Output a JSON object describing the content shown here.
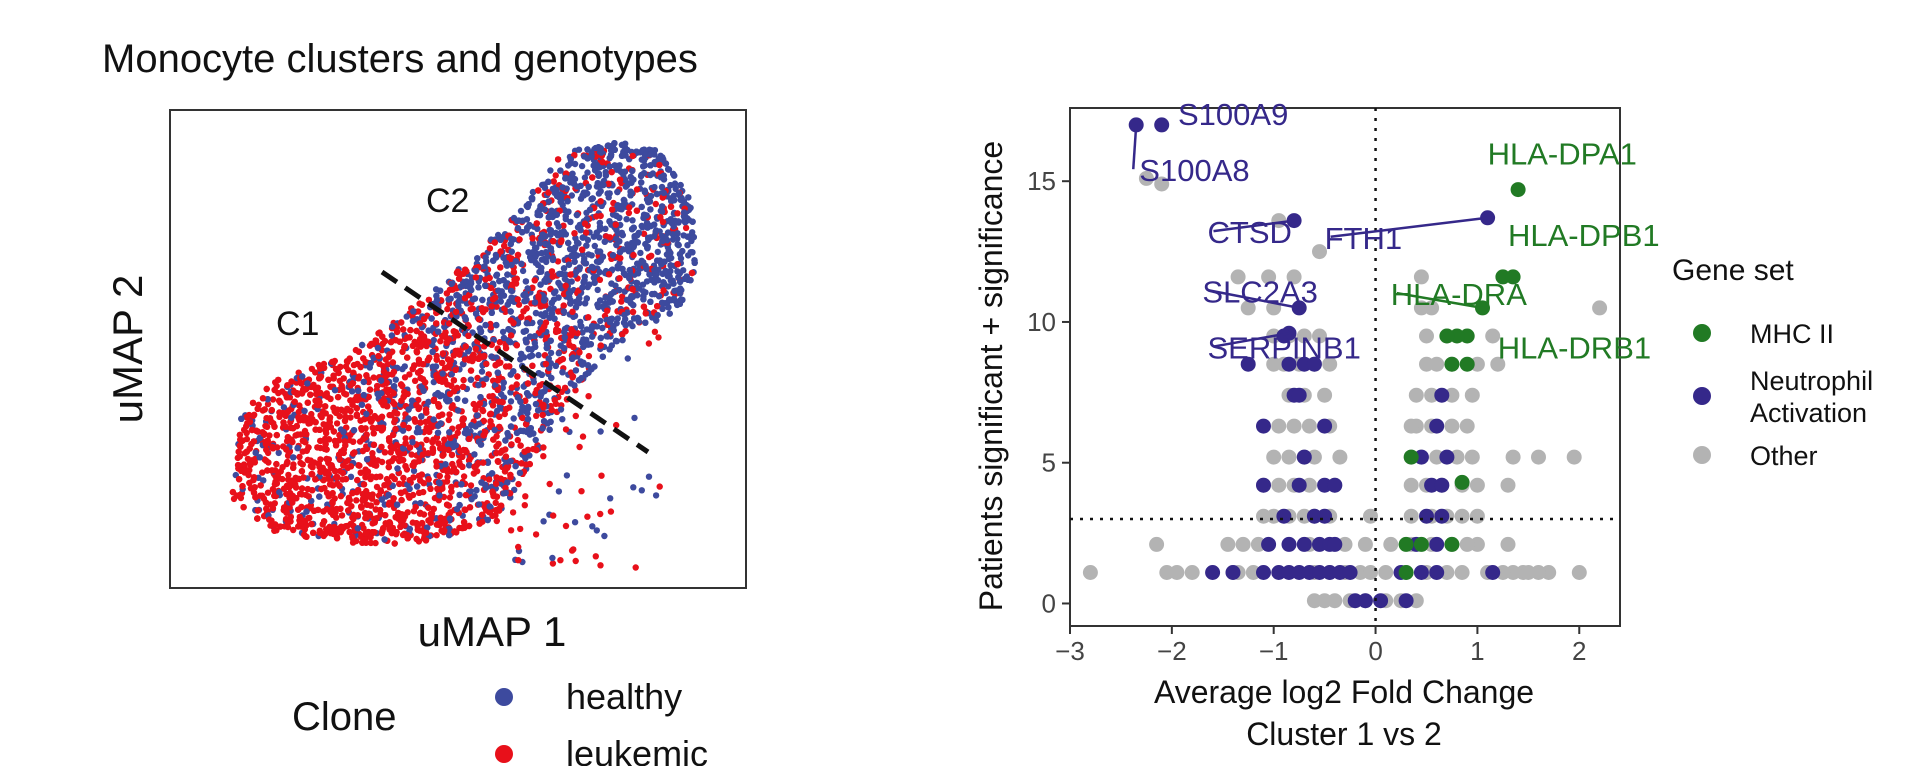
{
  "colors": {
    "healthy": "#3d4a9e",
    "leukemic": "#e8101a",
    "mhc": "#217a24",
    "neutrophil": "#35288a",
    "other": "#b3b3b3",
    "frame": "#333333"
  },
  "chart_data": [
    {
      "type": "scatter",
      "title": "Monocyte clusters and genotypes",
      "xlabel": "uMAP 1",
      "ylabel": "uMAP 2",
      "annotations": [
        "C1",
        "C2"
      ],
      "legend": {
        "title": "Clone",
        "position": "bottom",
        "entries": [
          {
            "key": "healthy",
            "label": "healthy"
          },
          {
            "key": "leukemic",
            "label": "leukemic"
          }
        ]
      },
      "divider": "dashed diagonal line separating C1 and C2"
    },
    {
      "type": "scatter",
      "xlabel": "Average log2 Fold Change",
      "xlabel2": "Cluster 1 vs 2",
      "ylabel": "Patients significant + significance",
      "xlim": [
        -3,
        2.4
      ],
      "ylim": [
        -0.8,
        17.6
      ],
      "xticks": [
        -3,
        -2,
        -1,
        0,
        1,
        2
      ],
      "xtick_labels": [
        "−3",
        "−2",
        "−1",
        "0",
        "1",
        "2"
      ],
      "yticks": [
        0,
        5,
        10,
        15
      ],
      "ytick_labels": [
        "0",
        "5",
        "10",
        "15"
      ],
      "hline": 3,
      "vline": 0,
      "legend": {
        "title": "Gene set",
        "position": "right",
        "entries": [
          {
            "key": "mhc",
            "lines": [
              "MHC II"
            ]
          },
          {
            "key": "neutrophil",
            "lines": [
              "Neutrophil",
              "Activation"
            ]
          },
          {
            "key": "other",
            "lines": [
              "Other"
            ]
          }
        ]
      },
      "labeled_points": [
        {
          "gene": "S100A9",
          "x": -2.1,
          "y": 17.0,
          "set": "neutrophil",
          "label_x": -1.94,
          "label_y": 17.0
        },
        {
          "gene": "S100A8",
          "x": -2.35,
          "y": 17.0,
          "set": "neutrophil",
          "label_x": -2.32,
          "label_y": 15.0
        },
        {
          "gene": "HLA-DPA1",
          "x": 1.4,
          "y": 14.7,
          "set": "mhc",
          "label_x": 1.1,
          "label_y": 15.6
        },
        {
          "gene": "FTH1",
          "x": 1.1,
          "y": 13.7,
          "set": "neutrophil",
          "label_x": -0.5,
          "label_y": 12.6
        },
        {
          "gene": "CTSD",
          "x": -0.8,
          "y": 13.6,
          "set": "neutrophil",
          "label_x": -1.65,
          "label_y": 12.8
        },
        {
          "gene": "HLA-DPB1",
          "x": 1.25,
          "y": 11.6,
          "set": "mhc",
          "label_x": 1.3,
          "label_y": 12.7
        },
        {
          "gene": "SLC2A3",
          "x": -0.75,
          "y": 10.5,
          "set": "neutrophil",
          "label_x": -1.7,
          "label_y": 10.7
        },
        {
          "gene": "HLA-DRA",
          "x": 1.05,
          "y": 10.5,
          "set": "mhc",
          "label_x": 0.15,
          "label_y": 10.6
        },
        {
          "gene": "SERPINB1",
          "x": -0.85,
          "y": 9.6,
          "set": "neutrophil",
          "label_x": -1.65,
          "label_y": 8.7
        },
        {
          "gene": "HLA-DRB1",
          "x": 0.9,
          "y": 9.5,
          "set": "mhc",
          "label_x": 1.2,
          "label_y": 8.7
        }
      ],
      "points": {
        "other": [
          [
            -2.8,
            1.1
          ],
          [
            -2.05,
            1.1
          ],
          [
            -1.95,
            1.1
          ],
          [
            -1.8,
            1.1
          ],
          [
            -1.4,
            1.1
          ],
          [
            -1.2,
            1.1
          ],
          [
            2.0,
            1.1
          ],
          [
            1.7,
            1.1
          ],
          [
            1.6,
            1.1
          ],
          [
            1.45,
            1.1
          ],
          [
            -2.15,
            2.1
          ],
          [
            -1.45,
            2.1
          ],
          [
            -1.3,
            2.1
          ],
          [
            -1.15,
            2.1
          ],
          [
            1.3,
            2.1
          ],
          [
            1.0,
            2.1
          ],
          [
            0.9,
            2.1
          ],
          [
            -1.35,
            1.1
          ],
          [
            1.5,
            1.1
          ],
          [
            1.35,
            1.1
          ],
          [
            -1.1,
            3.1
          ],
          [
            -1.0,
            3.1
          ],
          [
            -0.85,
            3.1
          ],
          [
            -0.7,
            3.1
          ],
          [
            -0.6,
            3.1
          ],
          [
            0.55,
            3.1
          ],
          [
            0.7,
            3.1
          ],
          [
            0.85,
            3.1
          ],
          [
            1.0,
            3.1
          ],
          [
            -0.05,
            3.1
          ],
          [
            -1.1,
            4.2
          ],
          [
            -0.95,
            4.2
          ],
          [
            -0.8,
            4.2
          ],
          [
            -0.65,
            4.2
          ],
          [
            0.5,
            4.2
          ],
          [
            0.65,
            4.2
          ],
          [
            0.85,
            4.2
          ],
          [
            1.0,
            4.2
          ],
          [
            1.3,
            4.2
          ],
          [
            -1.0,
            5.2
          ],
          [
            -0.85,
            5.2
          ],
          [
            -0.7,
            5.2
          ],
          [
            -0.6,
            5.2
          ],
          [
            0.45,
            5.2
          ],
          [
            0.6,
            5.2
          ],
          [
            0.8,
            5.2
          ],
          [
            0.95,
            5.2
          ],
          [
            1.35,
            5.2
          ],
          [
            1.6,
            5.2
          ],
          [
            1.95,
            5.2
          ],
          [
            -0.95,
            6.3
          ],
          [
            -0.8,
            6.3
          ],
          [
            -0.65,
            6.3
          ],
          [
            0.4,
            6.3
          ],
          [
            0.55,
            6.3
          ],
          [
            0.75,
            6.3
          ],
          [
            0.9,
            6.3
          ],
          [
            -0.85,
            7.4
          ],
          [
            -0.7,
            7.4
          ],
          [
            0.4,
            7.4
          ],
          [
            0.55,
            7.4
          ],
          [
            0.75,
            7.4
          ],
          [
            0.95,
            7.4
          ],
          [
            -1.0,
            8.5
          ],
          [
            -0.9,
            8.5
          ],
          [
            -0.75,
            8.5
          ],
          [
            -0.6,
            8.5
          ],
          [
            0.5,
            8.5
          ],
          [
            0.6,
            8.5
          ],
          [
            0.75,
            8.5
          ],
          [
            1.0,
            8.5
          ],
          [
            1.2,
            8.5
          ],
          [
            -1.0,
            9.5
          ],
          [
            -0.85,
            9.5
          ],
          [
            -0.7,
            9.5
          ],
          [
            0.5,
            9.5
          ],
          [
            0.7,
            9.5
          ],
          [
            1.15,
            9.5
          ],
          [
            -1.25,
            10.5
          ],
          [
            -1.0,
            10.5
          ],
          [
            0.45,
            10.5
          ],
          [
            0.55,
            10.5
          ],
          [
            2.2,
            10.5
          ],
          [
            -1.35,
            11.6
          ],
          [
            -1.05,
            11.6
          ],
          [
            0.45,
            11.6
          ],
          [
            -0.8,
            11.6
          ],
          [
            -0.95,
            13.6
          ],
          [
            -0.55,
            12.5
          ],
          [
            -2.1,
            14.9
          ],
          [
            -2.25,
            15.1
          ],
          [
            -0.6,
            0.1
          ],
          [
            -0.5,
            0.1
          ],
          [
            -0.4,
            0.1
          ],
          [
            -0.25,
            0.1
          ],
          [
            0.1,
            0.1
          ],
          [
            0.25,
            0.1
          ],
          [
            0.4,
            0.1
          ],
          [
            -0.1,
            0.1
          ],
          [
            -0.6,
            1.1
          ],
          [
            -0.45,
            1.1
          ],
          [
            -0.3,
            1.1
          ],
          [
            -0.15,
            1.1
          ],
          [
            -0.05,
            1.1
          ],
          [
            0.1,
            1.1
          ],
          [
            0.3,
            1.1
          ],
          [
            0.5,
            1.1
          ],
          [
            0.7,
            1.1
          ],
          [
            0.85,
            1.1
          ],
          [
            1.1,
            1.1
          ],
          [
            1.25,
            1.1
          ],
          [
            -0.65,
            2.1
          ],
          [
            -0.3,
            2.1
          ],
          [
            -0.1,
            2.1
          ],
          [
            0.15,
            2.1
          ],
          [
            0.35,
            2.1
          ],
          [
            0.55,
            2.1
          ],
          [
            0.75,
            2.1
          ],
          [
            -0.45,
            3.1
          ],
          [
            0.35,
            3.1
          ],
          [
            -0.4,
            4.2
          ],
          [
            0.35,
            4.2
          ],
          [
            -0.35,
            5.2
          ],
          [
            0.35,
            5.2
          ],
          [
            -0.45,
            6.3
          ],
          [
            0.35,
            6.3
          ],
          [
            -0.5,
            7.4
          ],
          [
            -0.45,
            8.5
          ],
          [
            -0.55,
            9.5
          ]
        ],
        "neutrophil": [
          [
            -2.35,
            17.0
          ],
          [
            -2.1,
            17.0
          ],
          [
            1.1,
            13.7
          ],
          [
            -0.8,
            13.6
          ],
          [
            -0.75,
            10.5
          ],
          [
            -0.85,
            9.6
          ],
          [
            -1.25,
            8.5
          ],
          [
            -1.6,
            1.1
          ],
          [
            -1.4,
            1.1
          ],
          [
            -1.1,
            1.1
          ],
          [
            -0.95,
            1.1
          ],
          [
            -0.85,
            1.1
          ],
          [
            -0.75,
            1.1
          ],
          [
            -0.65,
            1.1
          ],
          [
            -0.55,
            1.1
          ],
          [
            -0.45,
            1.1
          ],
          [
            -0.35,
            1.1
          ],
          [
            -0.25,
            1.1
          ],
          [
            0.25,
            1.1
          ],
          [
            0.45,
            1.1
          ],
          [
            0.6,
            1.1
          ],
          [
            1.15,
            1.1
          ],
          [
            -1.05,
            2.1
          ],
          [
            -0.85,
            2.1
          ],
          [
            -0.7,
            2.1
          ],
          [
            -0.55,
            2.1
          ],
          [
            -0.45,
            2.1
          ],
          [
            -0.4,
            2.1
          ],
          [
            0.4,
            2.1
          ],
          [
            0.6,
            2.1
          ],
          [
            -0.9,
            3.1
          ],
          [
            -0.6,
            3.1
          ],
          [
            -0.5,
            3.1
          ],
          [
            0.5,
            3.1
          ],
          [
            0.65,
            3.1
          ],
          [
            -1.1,
            4.2
          ],
          [
            -0.75,
            4.2
          ],
          [
            -0.5,
            4.2
          ],
          [
            -0.4,
            4.2
          ],
          [
            0.55,
            4.2
          ],
          [
            0.65,
            4.2
          ],
          [
            -0.7,
            5.2
          ],
          [
            0.45,
            5.2
          ],
          [
            0.7,
            5.2
          ],
          [
            -1.1,
            6.3
          ],
          [
            -0.5,
            6.3
          ],
          [
            0.6,
            6.3
          ],
          [
            -0.8,
            7.4
          ],
          [
            -0.75,
            7.4
          ],
          [
            0.65,
            7.4
          ],
          [
            -0.85,
            8.5
          ],
          [
            -0.7,
            8.5
          ],
          [
            -0.6,
            8.5
          ],
          [
            -0.9,
            9.5
          ],
          [
            -0.2,
            0.1
          ],
          [
            -0.1,
            0.1
          ],
          [
            0.05,
            0.1
          ],
          [
            0.3,
            0.1
          ]
        ],
        "mhc": [
          [
            1.4,
            14.7
          ],
          [
            1.25,
            11.6
          ],
          [
            1.35,
            11.6
          ],
          [
            1.05,
            10.5
          ],
          [
            0.9,
            9.5
          ],
          [
            0.8,
            9.5
          ],
          [
            0.7,
            9.5
          ],
          [
            0.75,
            8.5
          ],
          [
            0.9,
            8.5
          ],
          [
            0.35,
            5.2
          ],
          [
            0.85,
            4.3
          ],
          [
            0.3,
            2.1
          ],
          [
            0.45,
            2.1
          ],
          [
            0.75,
            2.1
          ],
          [
            0.3,
            1.1
          ]
        ]
      }
    }
  ]
}
